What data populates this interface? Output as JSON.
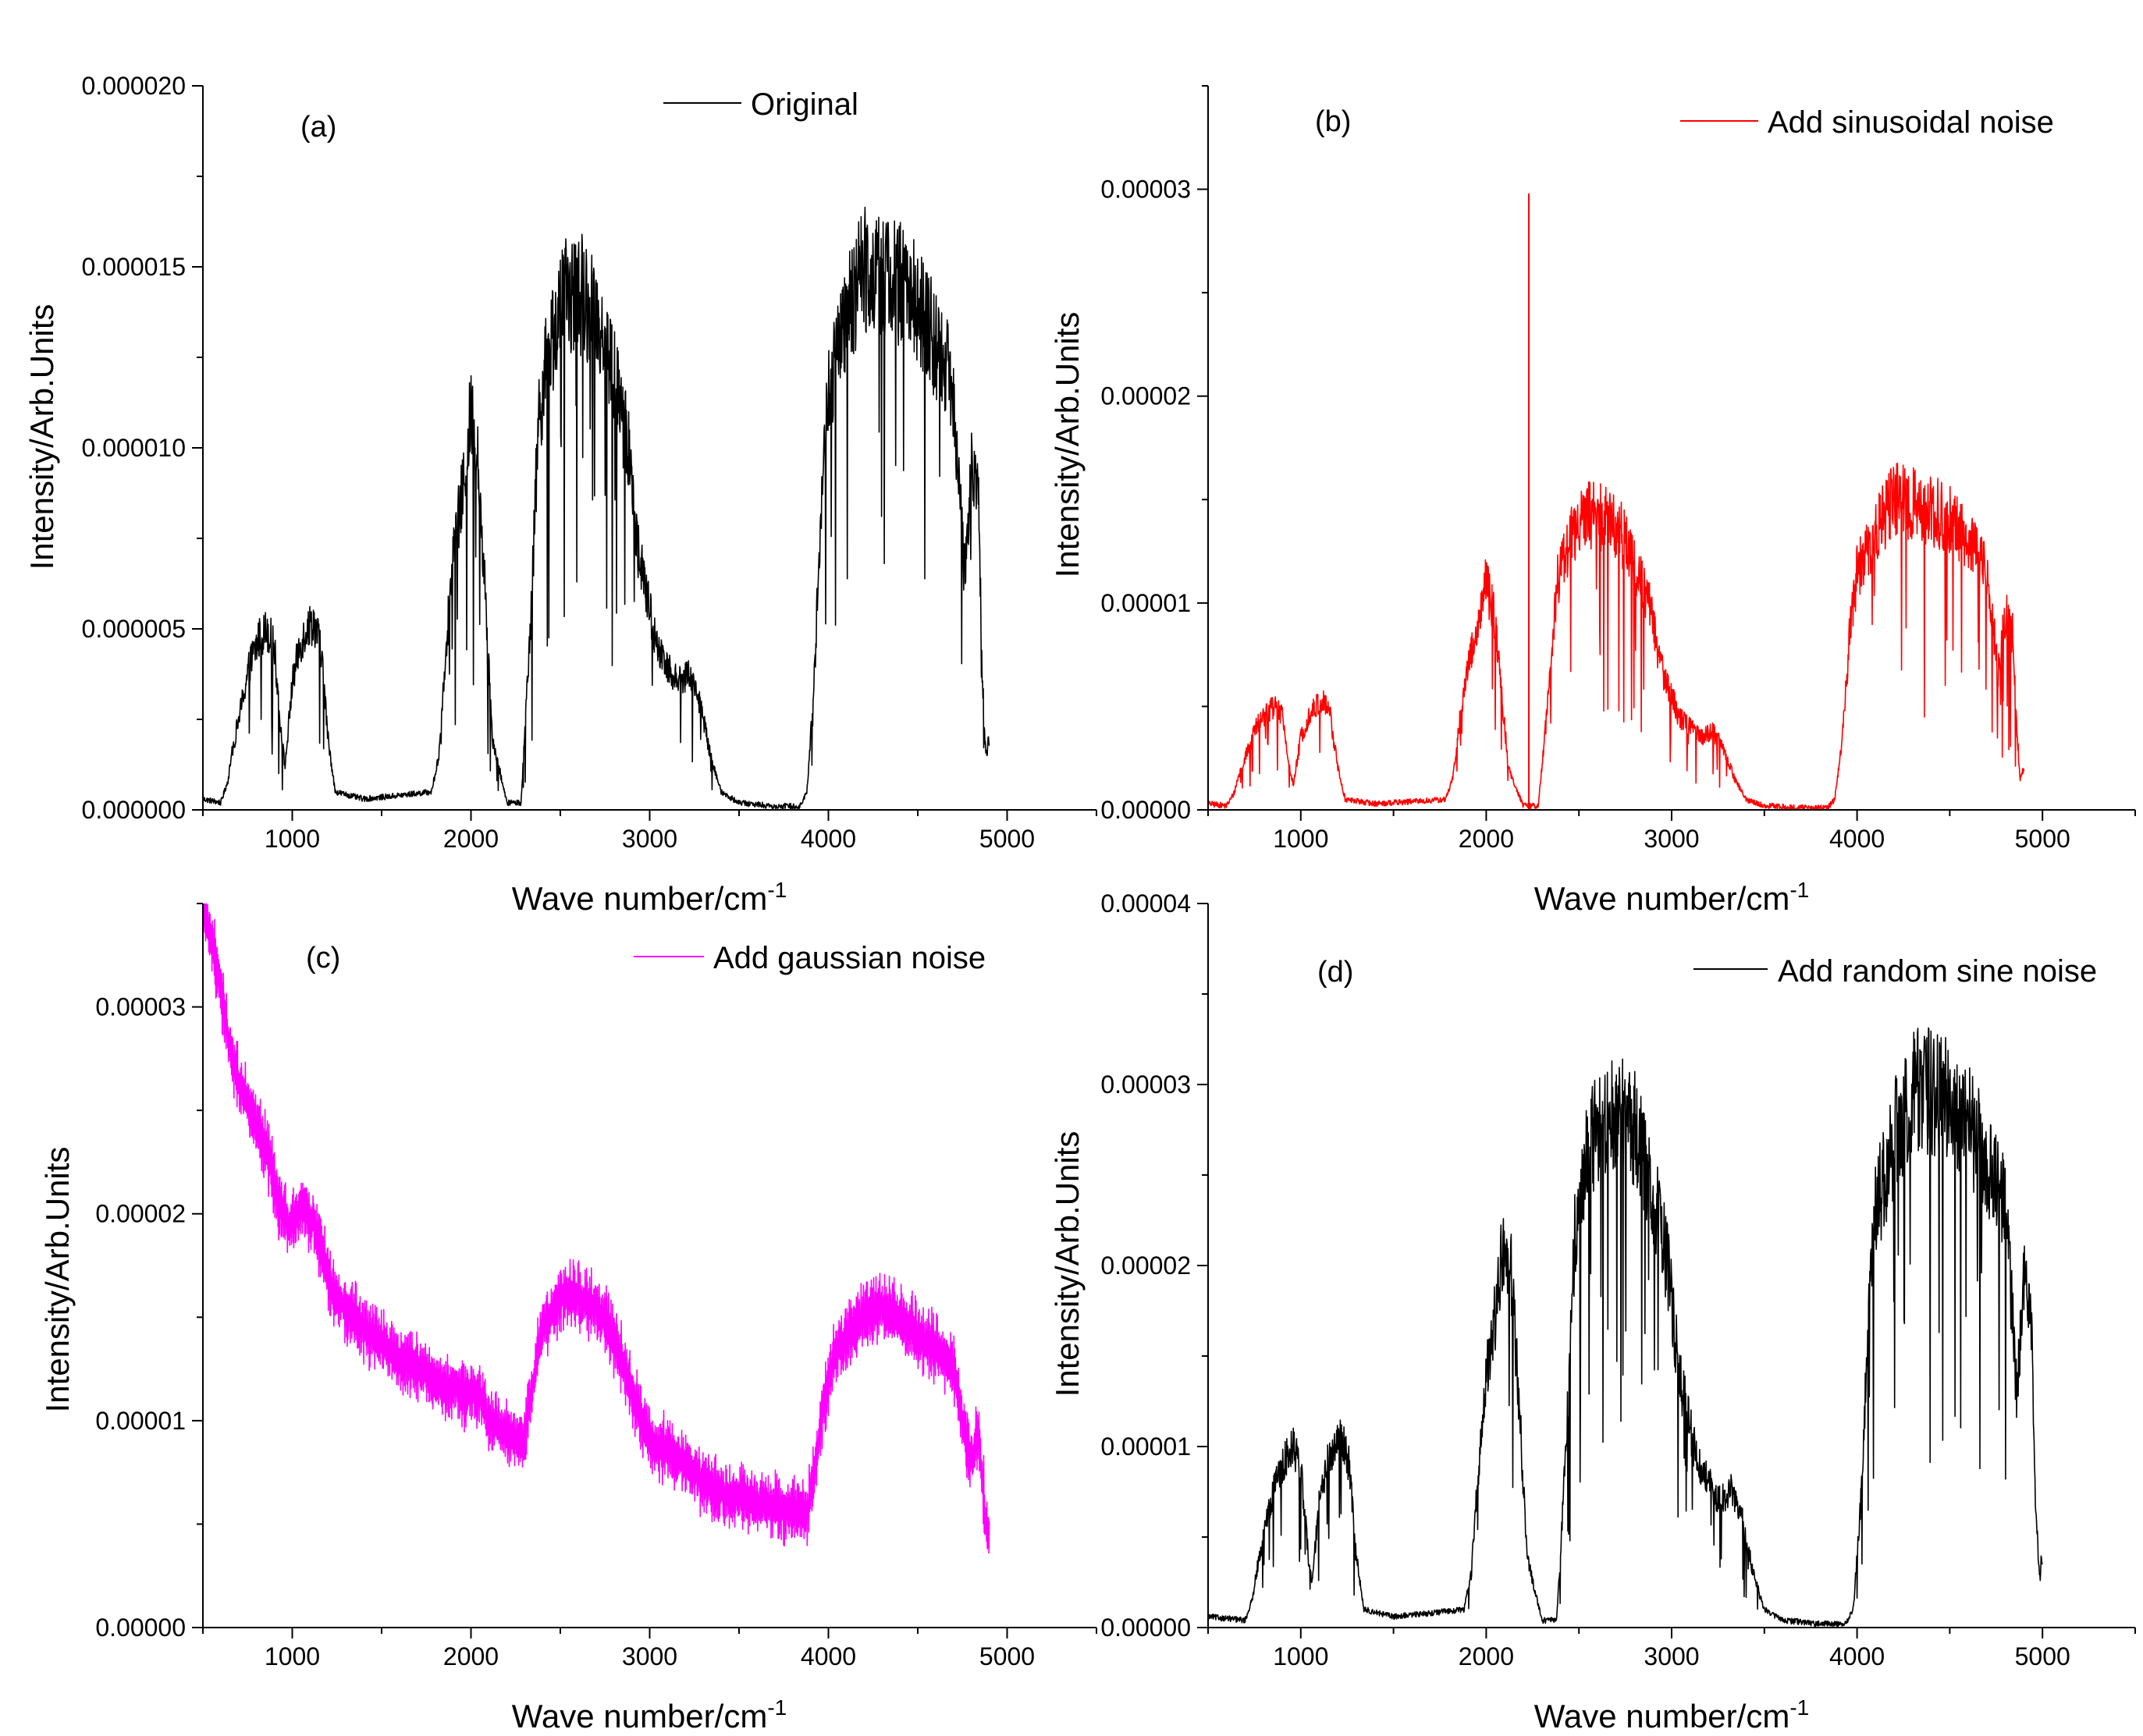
{
  "chart_data": [
    {
      "panel": "(a)",
      "type": "line",
      "legend": "Original",
      "color": "#000000",
      "xlabel": "Wave number/cm",
      "xlabel_sup": "-1",
      "ylabel": "Intensity/Arb.Units",
      "xlim": [
        500,
        5500
      ],
      "ylim": [
        0,
        2e-05
      ],
      "xticks": [
        1000,
        2000,
        3000,
        4000,
        5000
      ],
      "xtick_labels": [
        "1000",
        "2000",
        "3000",
        "4000",
        "5000"
      ],
      "yticks": [
        0,
        5e-06,
        1e-05,
        1.5e-05,
        2e-05
      ],
      "ytick_labels": [
        "0.000000",
        "0.000005",
        "0.000010",
        "0.000015",
        "0.000020"
      ],
      "noise": 0,
      "envelope": {
        "x": [
          500,
          600,
          640,
          660,
          700,
          760,
          820,
          860,
          900,
          940,
          960,
          1000,
          1040,
          1080,
          1120,
          1160,
          1200,
          1240,
          1400,
          1600,
          1780,
          1820,
          1860,
          1900,
          1960,
          2000,
          2040,
          2080,
          2120,
          2200,
          2280,
          2300,
          2340,
          2380,
          2440,
          2480,
          2540,
          2600,
          2700,
          2800,
          2880,
          2940,
          3000,
          3040,
          3100,
          3160,
          3220,
          3280,
          3340,
          3400,
          3500,
          3700,
          3840,
          3880,
          3920,
          3960,
          4000,
          4100,
          4200,
          4300,
          4400,
          4500,
          4560,
          4640,
          4700,
          4740,
          4760,
          4780,
          4800,
          4840,
          4860,
          4880,
          4900
        ],
        "y": [
          3e-07,
          2e-07,
          8e-07,
          1.5e-06,
          2.5e-06,
          4e-06,
          4.8e-06,
          5e-06,
          4.5e-06,
          2e-06,
          1.2e-06,
          3.5e-06,
          4.5e-06,
          5e-06,
          5.2e-06,
          4.5e-06,
          2e-06,
          5e-07,
          3e-07,
          4e-07,
          5e-07,
          1.5e-06,
          4.5e-06,
          7e-06,
          9e-06,
          1.1e-05,
          9.5e-06,
          6e-06,
          2e-06,
          2e-07,
          2e-07,
          2e-06,
          6e-06,
          1.1e-05,
          1.28e-05,
          1.35e-05,
          1.42e-05,
          1.43e-05,
          1.38e-05,
          1.2e-05,
          1e-05,
          7e-06,
          5.5e-06,
          4.5e-06,
          4e-06,
          3.5e-06,
          3.8e-06,
          3e-06,
          1.5e-06,
          5e-07,
          2e-07,
          1e-07,
          1e-07,
          5e-07,
          3.5e-06,
          8.5e-06,
          1.15e-05,
          1.35e-05,
          1.5e-05,
          1.48e-05,
          1.45e-05,
          1.4e-05,
          1.33e-05,
          1.25e-05,
          1.15e-05,
          8.5e-06,
          6.5e-06,
          8e-06,
          9.5e-06,
          8.5e-06,
          4e-06,
          1.5e-06,
          2e-06
        ]
      }
    },
    {
      "panel": "(b)",
      "type": "line",
      "legend": "Add sinusoidal noise",
      "color": "#ff0000",
      "xlabel": "Wave number/cm",
      "xlabel_sup": "-1",
      "ylabel": "Intensity/Arb.Units",
      "xlim": [
        500,
        5500
      ],
      "ylim": [
        0,
        3.5e-05
      ],
      "xticks": [
        1000,
        2000,
        3000,
        4000,
        5000
      ],
      "xtick_labels": [
        "1000",
        "2000",
        "3000",
        "4000",
        "5000"
      ],
      "yticks": [
        0,
        1e-05,
        2e-05,
        3e-05
      ],
      "ytick_labels": [
        "0.00000",
        "0.00001",
        "0.00002",
        "0.00003"
      ],
      "noise": 0,
      "spike": {
        "x": 2230,
        "y": 2.98e-05
      },
      "envelope": {
        "x": [
          500,
          600,
          640,
          660,
          700,
          760,
          820,
          860,
          900,
          940,
          960,
          1000,
          1040,
          1080,
          1120,
          1160,
          1200,
          1240,
          1400,
          1600,
          1780,
          1820,
          1860,
          1900,
          1960,
          2000,
          2040,
          2080,
          2120,
          2200,
          2280,
          2300,
          2340,
          2380,
          2440,
          2480,
          2540,
          2600,
          2700,
          2800,
          2880,
          2940,
          3000,
          3040,
          3100,
          3160,
          3220,
          3280,
          3340,
          3400,
          3500,
          3700,
          3840,
          3880,
          3920,
          3960,
          4000,
          4100,
          4200,
          4300,
          4400,
          4500,
          4560,
          4640,
          4700,
          4740,
          4760,
          4780,
          4800,
          4840,
          4860,
          4880,
          4900
        ],
        "y": [
          3e-07,
          2e-07,
          8e-07,
          1.5e-06,
          2.5e-06,
          4e-06,
          4.8e-06,
          5e-06,
          4.5e-06,
          2e-06,
          1.2e-06,
          3.5e-06,
          4.5e-06,
          5e-06,
          5.2e-06,
          4.5e-06,
          2e-06,
          5e-07,
          3e-07,
          4e-07,
          5e-07,
          1.5e-06,
          4.5e-06,
          7e-06,
          9e-06,
          1.1e-05,
          9.5e-06,
          6e-06,
          2e-06,
          2e-07,
          2e-07,
          2e-06,
          6e-06,
          1.1e-05,
          1.28e-05,
          1.35e-05,
          1.42e-05,
          1.43e-05,
          1.38e-05,
          1.2e-05,
          1e-05,
          7e-06,
          5.5e-06,
          4.5e-06,
          4e-06,
          3.5e-06,
          3.8e-06,
          3e-06,
          1.5e-06,
          5e-07,
          2e-07,
          1e-07,
          1e-07,
          5e-07,
          3.5e-06,
          8.5e-06,
          1.15e-05,
          1.35e-05,
          1.5e-05,
          1.48e-05,
          1.45e-05,
          1.4e-05,
          1.33e-05,
          1.25e-05,
          1.15e-05,
          8.5e-06,
          6.5e-06,
          8e-06,
          9.5e-06,
          8.5e-06,
          4e-06,
          1.5e-06,
          2e-06
        ]
      }
    },
    {
      "panel": "(c)",
      "type": "line",
      "legend": "Add gaussian noise",
      "color": "#ff00ff",
      "xlabel": "Wave number/cm",
      "xlabel_sup": "-1",
      "ylabel": "Intensity/Arb.Units",
      "xlim": [
        500,
        5500
      ],
      "ylim": [
        0,
        3.5e-05
      ],
      "xticks": [
        1000,
        2000,
        3000,
        4000,
        5000
      ],
      "xtick_labels": [
        "1000",
        "2000",
        "3000",
        "4000",
        "5000"
      ],
      "yticks": [
        0,
        1e-05,
        2e-05,
        3e-05
      ],
      "ytick_labels": [
        "0.00000",
        "0.00001",
        "0.00002",
        "0.00003"
      ],
      "noise": 2e-06,
      "envelope": {
        "x": [
          500,
          580,
          660,
          760,
          860,
          920,
          980,
          1060,
          1120,
          1180,
          1240,
          1400,
          1600,
          1800,
          1860,
          1900,
          1960,
          2000,
          2060,
          2100,
          2200,
          2300,
          2340,
          2400,
          2500,
          2600,
          2700,
          2800,
          2900,
          3000,
          3100,
          3200,
          3300,
          3400,
          3600,
          3800,
          3880,
          3920,
          3980,
          4040,
          4100,
          4200,
          4300,
          4400,
          4500,
          4600,
          4700,
          4760,
          4800,
          4840,
          4880,
          4900
        ],
        "y": [
          3.5e-05,
          3.2e-05,
          2.75e-05,
          2.5e-05,
          2.3e-05,
          2.05e-05,
          1.95e-05,
          2.05e-05,
          1.95e-05,
          1.75e-05,
          1.6e-05,
          1.45e-05,
          1.3e-05,
          1.2e-05,
          1.15e-05,
          1.2e-05,
          1.1e-05,
          1.15e-05,
          1.1e-05,
          1e-05,
          9.4e-06,
          9e-06,
          1.15e-05,
          1.45e-05,
          1.6e-05,
          1.6e-05,
          1.55e-05,
          1.4e-05,
          1.15e-05,
          9e-06,
          8.5e-06,
          8e-06,
          7e-06,
          6.5e-06,
          6e-06,
          5.7e-06,
          5.5e-06,
          7.5e-06,
          1.1e-05,
          1.35e-05,
          1.4e-05,
          1.5e-05,
          1.55e-05,
          1.5e-05,
          1.4e-05,
          1.35e-05,
          1.25e-05,
          9.5e-06,
          8e-06,
          9.5e-06,
          5.2e-06,
          4.5e-06
        ]
      }
    },
    {
      "panel": "(d)",
      "type": "line",
      "legend": "Add random sine noise",
      "color": "#000000",
      "xlabel": "Wave number/cm",
      "xlabel_sup": "-1",
      "ylabel": "Intensity/Arb.Units",
      "xlim": [
        500,
        5500
      ],
      "ylim": [
        0,
        4e-05
      ],
      "xticks": [
        1000,
        2000,
        3000,
        4000,
        5000
      ],
      "xtick_labels": [
        "1000",
        "2000",
        "3000",
        "4000",
        "5000"
      ],
      "yticks": [
        0,
        1e-05,
        2e-05,
        3e-05,
        4e-05
      ],
      "ytick_labels": [
        "0.00000",
        "0.00001",
        "0.00002",
        "0.00003",
        "0.00004"
      ],
      "noise": 0,
      "envelope": {
        "x": [
          500,
          700,
          740,
          760,
          800,
          860,
          920,
          960,
          1000,
          1040,
          1060,
          1100,
          1140,
          1180,
          1220,
          1260,
          1300,
          1340,
          1500,
          1700,
          1880,
          1920,
          1960,
          2000,
          2060,
          2100,
          2140,
          2180,
          2220,
          2300,
          2380,
          2400,
          2440,
          2480,
          2540,
          2580,
          2640,
          2700,
          2800,
          2900,
          2980,
          3040,
          3100,
          3140,
          3200,
          3260,
          3320,
          3380,
          3440,
          3500,
          3600,
          3800,
          3940,
          3980,
          4020,
          4060,
          4100,
          4200,
          4300,
          4400,
          4500,
          4600,
          4660,
          4740,
          4800,
          4840,
          4860,
          4880,
          4900,
          4940,
          4960,
          4980,
          5000
        ],
        "y": [
          6e-07,
          4e-07,
          1.6e-06,
          3e-06,
          5e-06,
          8e-06,
          9.5e-06,
          1e-05,
          9e-06,
          4e-06,
          2.4e-06,
          7e-06,
          9e-06,
          1e-05,
          1.04e-05,
          9e-06,
          4e-06,
          1e-06,
          6e-07,
          8e-07,
          1e-06,
          3e-06,
          9e-06,
          1.4e-05,
          1.8e-05,
          2.2e-05,
          1.9e-05,
          1.2e-05,
          4e-06,
          4e-07,
          4e-07,
          4e-06,
          1.2e-05,
          2.2e-05,
          2.56e-05,
          2.7e-05,
          2.84e-05,
          2.86e-05,
          2.76e-05,
          2.4e-05,
          2e-05,
          1.4e-05,
          1.1e-05,
          9e-06,
          8e-06,
          7e-06,
          7.6e-06,
          6e-06,
          3e-06,
          1e-06,
          4e-07,
          2e-07,
          2e-07,
          1e-06,
          7e-06,
          1.7e-05,
          2.3e-05,
          2.7e-05,
          3e-05,
          2.96e-05,
          2.9e-05,
          2.8e-05,
          2.66e-05,
          2.5e-05,
          2.3e-05,
          1.7e-05,
          1.3e-05,
          1.6e-05,
          1.9e-05,
          1.7e-05,
          8e-06,
          3e-06,
          4e-06
        ]
      }
    }
  ]
}
